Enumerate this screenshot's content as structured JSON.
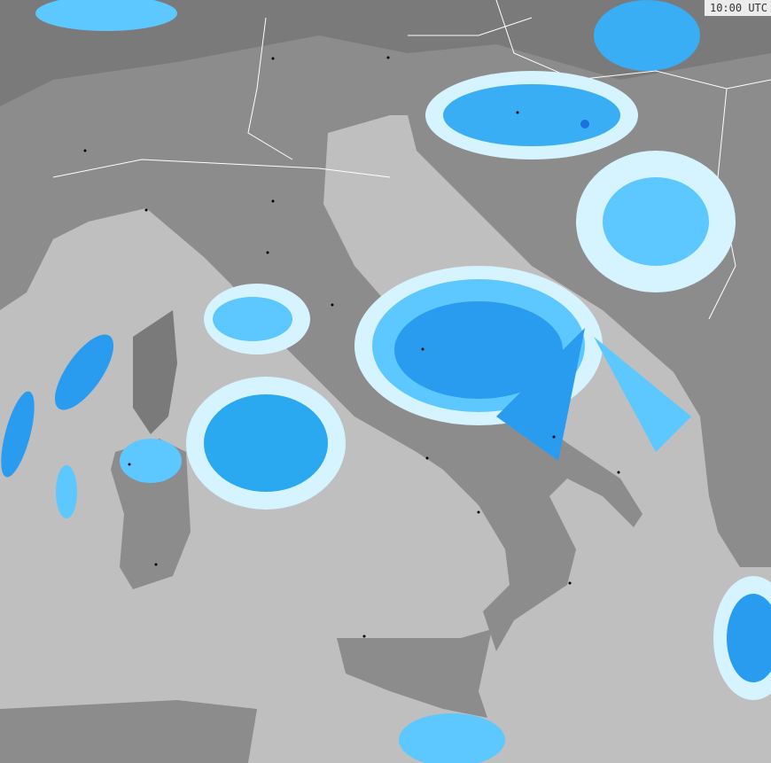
{
  "map": {
    "timestamp": "10:00 UTC",
    "colors": {
      "sea": "#bfbfbf",
      "land": "#8c8c8c",
      "land_dark": "#7a7a7a",
      "borders": "#ffffff",
      "precip_light": "#d6f4ff",
      "precip_medium": "#5cc8ff",
      "precip_strong": "#2a9cf0",
      "precip_heavy": "#1f6fe0"
    }
  }
}
